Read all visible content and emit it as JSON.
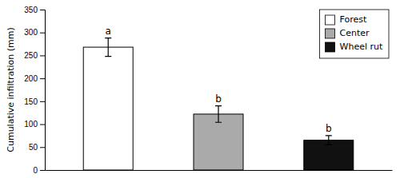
{
  "chart_data": {
    "type": "bar",
    "categories": [
      "Forest",
      "Center",
      "Wheel rut"
    ],
    "values": [
      268,
      122,
      65
    ],
    "errors": [
      20,
      18,
      10
    ],
    "annotations": [
      "a",
      "b",
      "b"
    ],
    "colors": [
      "#ffffff",
      "#aaaaaa",
      "#111111"
    ],
    "ylabel": "Cumulative infiltration (mm)",
    "ylim": [
      0,
      350
    ],
    "yticks": [
      0,
      50,
      100,
      150,
      200,
      250,
      300,
      350
    ],
    "tick_labels": "y",
    "legend": "upper right",
    "grid": false
  }
}
